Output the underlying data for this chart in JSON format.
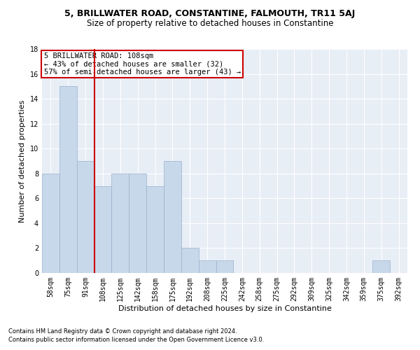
{
  "title": "5, BRILLWATER ROAD, CONSTANTINE, FALMOUTH, TR11 5AJ",
  "subtitle": "Size of property relative to detached houses in Constantine",
  "xlabel": "Distribution of detached houses by size in Constantine",
  "ylabel": "Number of detached properties",
  "categories": [
    "58sqm",
    "75sqm",
    "91sqm",
    "108sqm",
    "125sqm",
    "142sqm",
    "158sqm",
    "175sqm",
    "192sqm",
    "208sqm",
    "225sqm",
    "242sqm",
    "258sqm",
    "275sqm",
    "292sqm",
    "309sqm",
    "325sqm",
    "342sqm",
    "359sqm",
    "375sqm",
    "392sqm"
  ],
  "values": [
    8,
    15,
    9,
    7,
    8,
    8,
    7,
    9,
    2,
    1,
    1,
    0,
    0,
    0,
    0,
    0,
    0,
    0,
    0,
    1,
    0
  ],
  "bar_color": "#c8d8eb",
  "bar_edge_color": "#9ab0cb",
  "vline_color": "#cc0000",
  "annotation_text": "5 BRILLWATER ROAD: 108sqm\n← 43% of detached houses are smaller (32)\n57% of semi-detached houses are larger (43) →",
  "annotation_box_color": "#cc0000",
  "ylim": [
    0,
    18
  ],
  "yticks": [
    0,
    2,
    4,
    6,
    8,
    10,
    12,
    14,
    16,
    18
  ],
  "bg_color": "#e8eef6",
  "grid_color": "#ffffff",
  "footer_line1": "Contains HM Land Registry data © Crown copyright and database right 2024.",
  "footer_line2": "Contains public sector information licensed under the Open Government Licence v3.0.",
  "title_fontsize": 9,
  "subtitle_fontsize": 8.5,
  "xlabel_fontsize": 8,
  "ylabel_fontsize": 8,
  "tick_fontsize": 7,
  "footer_fontsize": 6
}
